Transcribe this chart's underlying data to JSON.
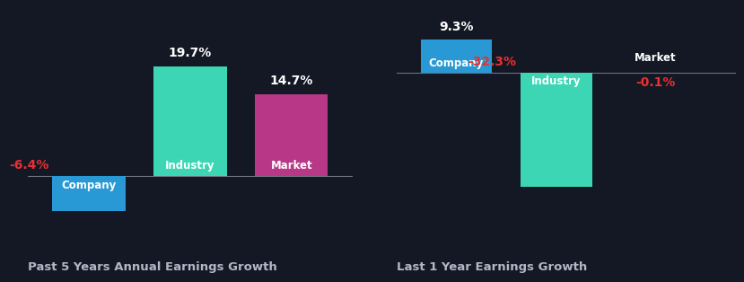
{
  "background_color": "#141824",
  "panel1": {
    "title": "Past 5 Years Annual Earnings Growth",
    "bars": [
      {
        "label": "Company",
        "value": -6.4,
        "color": "#2899d4",
        "x": 0
      },
      {
        "label": "Industry",
        "value": 19.7,
        "color": "#3dd6b5",
        "x": 1
      },
      {
        "label": "Market",
        "value": 14.7,
        "color": "#b83887",
        "x": 2
      }
    ],
    "ylim": [
      -12,
      30
    ]
  },
  "panel2": {
    "title": "Last 1 Year Earnings Growth",
    "bars": [
      {
        "label": "Company",
        "value": 9.3,
        "color": "#2899d4",
        "x": 0
      },
      {
        "label": "Industry",
        "value": -32.3,
        "color": "#3dd6b5",
        "x": 1
      },
      {
        "label": "Market",
        "value": -0.1,
        "color": "#b83887",
        "x": 2
      }
    ],
    "ylim": [
      -48,
      18
    ]
  },
  "text_color": "#ffffff",
  "negative_label_color": "#e83030",
  "positive_label_color": "#ffffff",
  "title_color": "#b0b8c8",
  "bar_label_fontsize": 8.5,
  "value_label_fontsize": 10,
  "title_fontsize": 9.5,
  "bar_width": 0.72
}
